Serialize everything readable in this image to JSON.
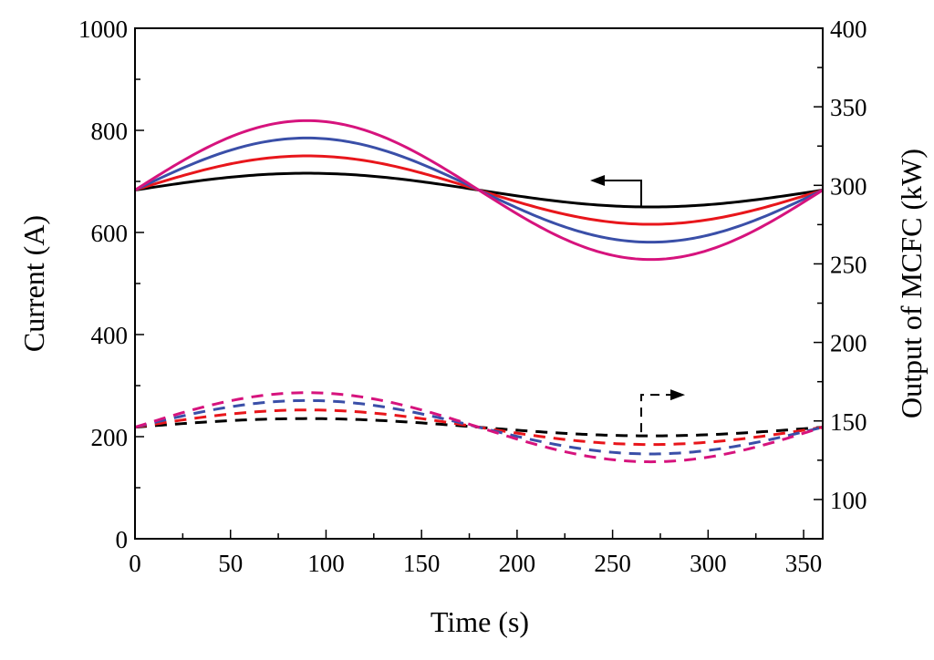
{
  "chart_data": {
    "type": "line",
    "title": "",
    "xlabel": "Time (s)",
    "ylabel_left": "Current (A)",
    "ylabel_right": "Output of MCFC (kW)",
    "xlim": [
      0,
      360
    ],
    "ylim_left": [
      0,
      1000
    ],
    "ylim_right": [
      75,
      400
    ],
    "x_ticks": [
      0,
      50,
      100,
      150,
      200,
      250,
      300,
      350
    ],
    "y_left_ticks": [
      0,
      200,
      400,
      600,
      800,
      1000
    ],
    "y_right_ticks": [
      100,
      150,
      200,
      250,
      300,
      350,
      400
    ],
    "grid": false,
    "series": [
      {
        "name": "current-black",
        "axis": "left",
        "style": "solid",
        "color": "#000000",
        "offset": 683,
        "amplitude": 33,
        "period": 360
      },
      {
        "name": "current-red",
        "axis": "left",
        "style": "solid",
        "color": "#e8161b",
        "offset": 683,
        "amplitude": 67,
        "period": 360
      },
      {
        "name": "current-blue",
        "axis": "left",
        "style": "solid",
        "color": "#3a4fa8",
        "offset": 683,
        "amplitude": 102,
        "period": 360
      },
      {
        "name": "current-magenta",
        "axis": "left",
        "style": "solid",
        "color": "#d6137d",
        "offset": 683,
        "amplitude": 136,
        "period": 360
      },
      {
        "name": "output-black",
        "axis": "right",
        "style": "dashed",
        "color": "#000000",
        "offset": 146,
        "amplitude": 5.5,
        "period": 360
      },
      {
        "name": "output-red",
        "axis": "right",
        "style": "dashed",
        "color": "#e8161b",
        "offset": 146,
        "amplitude": 11,
        "period": 360
      },
      {
        "name": "output-blue",
        "axis": "right",
        "style": "dashed",
        "color": "#3a4fa8",
        "offset": 146,
        "amplitude": 17,
        "period": 360
      },
      {
        "name": "output-magenta",
        "axis": "right",
        "style": "dashed",
        "color": "#d6137d",
        "offset": 146,
        "amplitude": 22,
        "period": 360
      }
    ],
    "annotations": [
      {
        "name": "left-axis-arrow",
        "points_to": "left",
        "attached_series": "current"
      },
      {
        "name": "right-axis-arrow",
        "points_to": "right",
        "attached_series": "output"
      }
    ]
  }
}
